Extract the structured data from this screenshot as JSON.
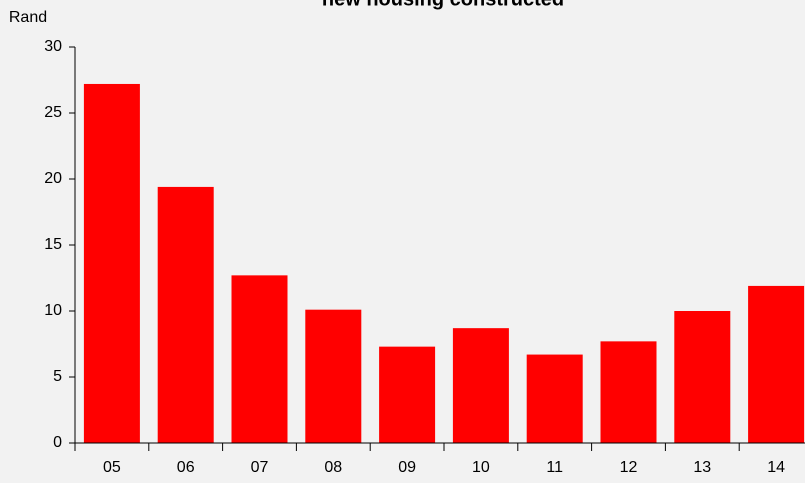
{
  "chart_data": {
    "type": "bar",
    "title": "new housing constructed",
    "y_label": "Rand",
    "categories": [
      "05",
      "06",
      "07",
      "08",
      "09",
      "10",
      "11",
      "12",
      "13",
      "14"
    ],
    "values": [
      27.2,
      19.4,
      12.7,
      10.1,
      7.3,
      8.7,
      6.7,
      7.7,
      10.0,
      11.9
    ],
    "color": "#ff0000",
    "ylim": [
      0,
      30
    ],
    "yticks": [
      0,
      5,
      10,
      15,
      20,
      25,
      30
    ],
    "grid": false
  }
}
